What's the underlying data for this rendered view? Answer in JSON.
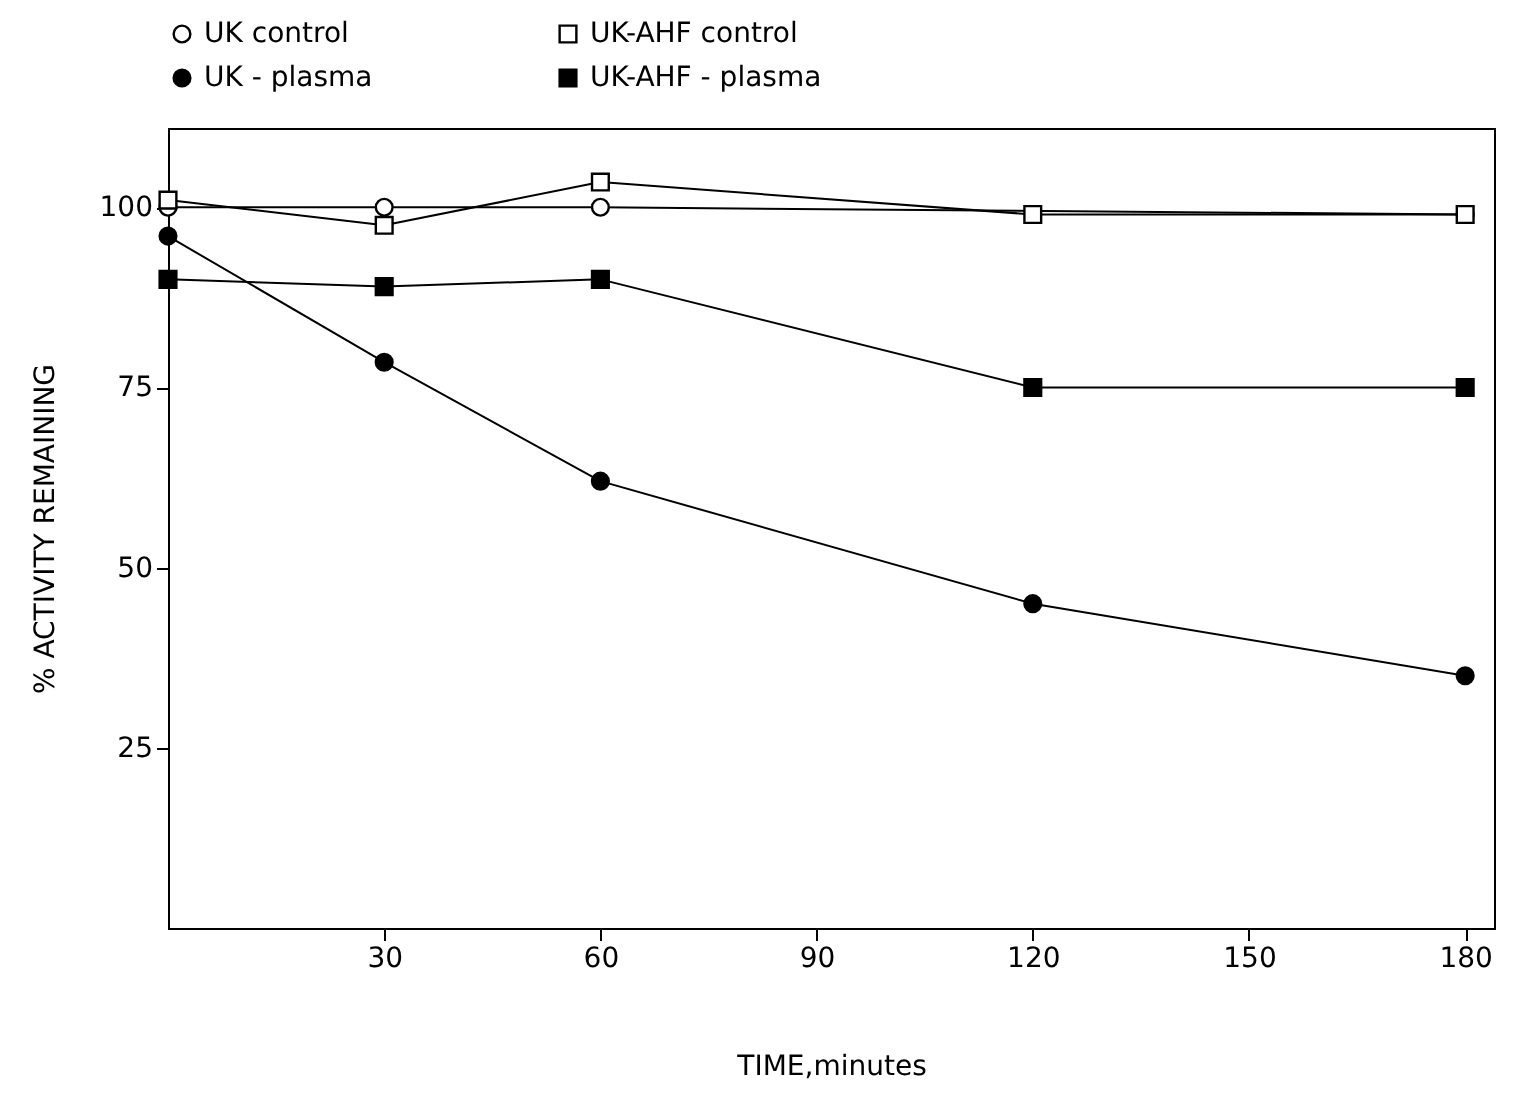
{
  "chart_data": {
    "type": "line",
    "xlabel": "TIME,minutes",
    "ylabel": "% ACTIVITY REMAINING",
    "xlim": [
      0,
      184
    ],
    "xticks": [
      30,
      60,
      90,
      120,
      150,
      180
    ],
    "ylim": [
      0,
      111
    ],
    "yticks": [
      25,
      50,
      75,
      100
    ],
    "grid": false,
    "legend": "top",
    "series": [
      {
        "name": "UK control",
        "color": "#ffffff",
        "marker": "circle",
        "x": [
          0,
          30,
          60,
          180
        ],
        "values": [
          100,
          100,
          100,
          99
        ]
      },
      {
        "name": "UK-AHF control",
        "color": "#ffffff",
        "marker": "square",
        "x": [
          0,
          30,
          60,
          120,
          180
        ],
        "values": [
          101,
          97.5,
          103.5,
          99,
          99
        ]
      },
      {
        "name": "UK - plasma",
        "color": "#000000",
        "marker": "circle",
        "x": [
          0,
          30,
          60,
          120,
          180
        ],
        "values": [
          96,
          78.5,
          62,
          45,
          35
        ]
      },
      {
        "name": "UK-AHF - plasma",
        "color": "#000000",
        "marker": "square",
        "x": [
          0,
          30,
          60,
          120,
          180
        ],
        "values": [
          90,
          89,
          90,
          75,
          75
        ]
      }
    ]
  }
}
